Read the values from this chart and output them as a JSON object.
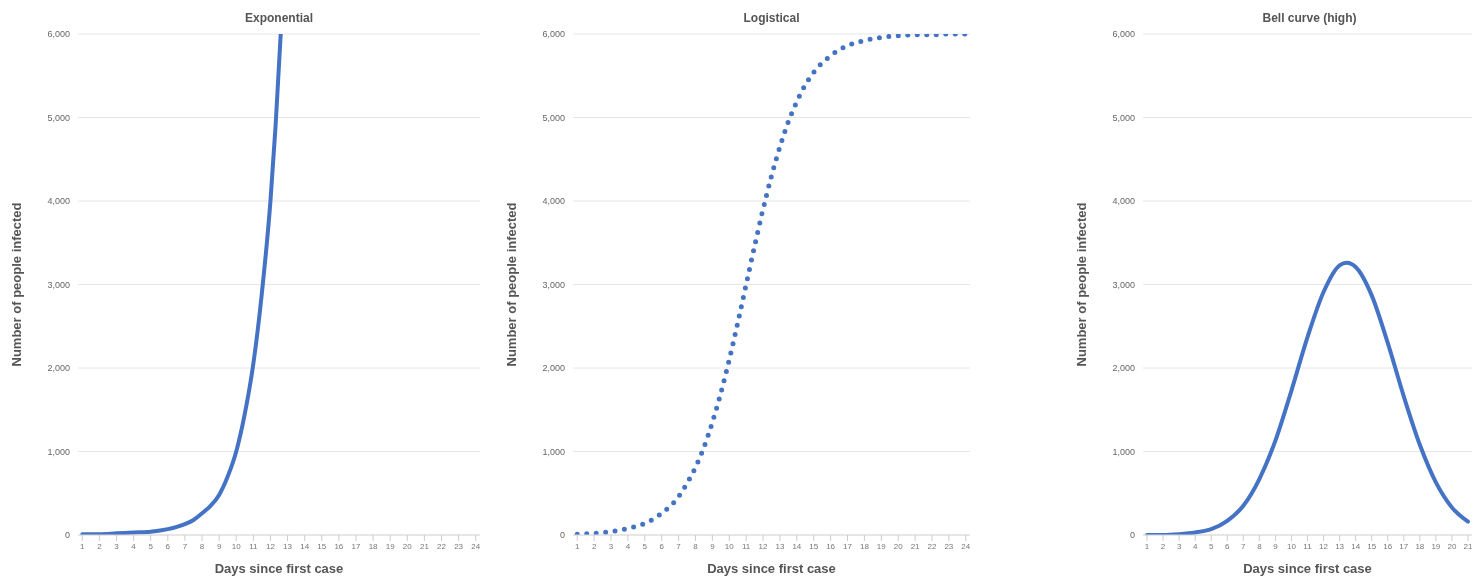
{
  "chart_data": [
    {
      "type": "line",
      "title": "Exponential",
      "xlabel": "Days since first case",
      "ylabel": "Number of people infected",
      "color": "#4472c4",
      "x": [
        1,
        2,
        3,
        4,
        5,
        6,
        7,
        7.5,
        8,
        8.5,
        9,
        9.5,
        10,
        10.5,
        11,
        11.5,
        12,
        12.3,
        12.6
      ],
      "values": [
        10,
        10,
        20,
        30,
        40,
        70,
        130,
        180,
        260,
        350,
        480,
        700,
        1000,
        1450,
        2050,
        2900,
        4000,
        4900,
        6000
      ],
      "xlim": [
        0.75,
        24.25
      ],
      "xticks": [
        1,
        2,
        3,
        4,
        5,
        6,
        7,
        8,
        9,
        10,
        11,
        12,
        13,
        14,
        15,
        16,
        17,
        18,
        19,
        20,
        21,
        22,
        23,
        24
      ],
      "ylim": [
        0,
        6000
      ],
      "yticks": [
        {
          "value": 0,
          "label": "0"
        },
        {
          "value": 1000,
          "label": "1,000"
        },
        {
          "value": 2000,
          "label": "2,000"
        },
        {
          "value": 3000,
          "label": "3,000"
        },
        {
          "value": 4000,
          "label": "4,000"
        },
        {
          "value": 5000,
          "label": "5,000"
        },
        {
          "value": 6000,
          "label": "6,000"
        }
      ],
      "grid": "y",
      "line_style": "solid"
    },
    {
      "type": "line",
      "title": "Logistical",
      "xlabel": "Days since first case",
      "ylabel": "Number of people infected",
      "color": "#4472c4",
      "x": [
        1,
        2,
        3,
        4,
        5,
        6,
        7,
        7.5,
        8,
        8.5,
        9,
        9.5,
        10,
        10.5,
        11,
        11.5,
        12,
        12.5,
        13,
        13.5,
        14,
        14.5,
        15,
        16,
        17,
        18,
        19,
        20,
        21,
        22,
        23,
        24
      ],
      "values": [
        10,
        20,
        40,
        80,
        140,
        260,
        460,
        620,
        810,
        1050,
        1350,
        1700,
        2100,
        2540,
        3000,
        3460,
        3900,
        4300,
        4650,
        4950,
        5190,
        5390,
        5540,
        5740,
        5860,
        5920,
        5960,
        5980,
        5990,
        5990,
        6000,
        6000
      ],
      "xlim": [
        0.75,
        24.25
      ],
      "xticks": [
        1,
        2,
        3,
        4,
        5,
        6,
        7,
        8,
        9,
        10,
        11,
        12,
        13,
        14,
        15,
        16,
        17,
        18,
        19,
        20,
        21,
        22,
        23,
        24
      ],
      "ylim": [
        0,
        6000
      ],
      "yticks": [
        {
          "value": 0,
          "label": "0"
        },
        {
          "value": 1000,
          "label": "1,000"
        },
        {
          "value": 2000,
          "label": "2,000"
        },
        {
          "value": 3000,
          "label": "3,000"
        },
        {
          "value": 4000,
          "label": "4,000"
        },
        {
          "value": 5000,
          "label": "5,000"
        },
        {
          "value": 6000,
          "label": "6,000"
        }
      ],
      "grid": "y",
      "line_style": "dotted"
    },
    {
      "type": "line",
      "title": "Bell curve (high)",
      "xlabel": "Days since first case",
      "ylabel": "Number of people infected",
      "color": "#4472c4",
      "x": [
        1,
        2,
        3,
        4,
        5,
        6,
        7,
        8,
        9,
        10,
        11,
        12,
        13,
        13.45,
        14,
        15,
        16,
        17,
        18,
        19,
        20,
        21
      ],
      "values": [
        0,
        0,
        10,
        30,
        70,
        170,
        350,
        670,
        1130,
        1730,
        2370,
        2910,
        3230,
        3260,
        3210,
        2870,
        2300,
        1660,
        1080,
        630,
        330,
        160
      ],
      "xlim": [
        0.75,
        21.25
      ],
      "xticks": [
        1,
        2,
        3,
        4,
        5,
        6,
        7,
        8,
        9,
        10,
        11,
        12,
        13,
        14,
        15,
        16,
        17,
        18,
        19,
        20,
        21
      ],
      "ylim": [
        0,
        6000
      ],
      "yticks": [
        {
          "value": 0,
          "label": "0"
        },
        {
          "value": 1000,
          "label": "1,000"
        },
        {
          "value": 2000,
          "label": "2,000"
        },
        {
          "value": 3000,
          "label": "3,000"
        },
        {
          "value": 4000,
          "label": "4,000"
        },
        {
          "value": 5000,
          "label": "5,000"
        },
        {
          "value": 6000,
          "label": "6,000"
        }
      ],
      "grid": "y",
      "line_style": "solid"
    }
  ]
}
